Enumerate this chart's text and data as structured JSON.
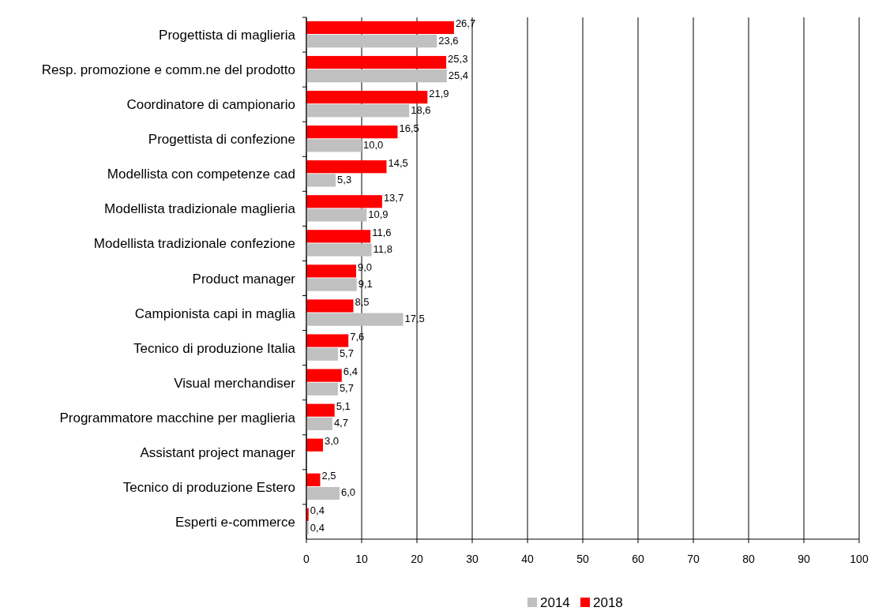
{
  "chart_data": {
    "type": "bar",
    "orientation": "horizontal",
    "categories": [
      "Progettista di maglieria",
      "Resp. promozione e comm.ne del prodotto",
      "Coordinatore di campionario",
      "Progettista di confezione",
      "Modellista con competenze cad",
      "Modellista tradizionale maglieria",
      "Modellista tradizionale confezione",
      "Product manager",
      "Campionista capi in maglia",
      "Tecnico di produzione Italia",
      "Visual merchandiser",
      "Programmatore macchine per maglieria",
      "Assistant project manager",
      "Tecnico di produzione Estero",
      "Esperti e-commerce"
    ],
    "series": [
      {
        "name": "2014",
        "color": "#c0c0c0",
        "values": [
          23.6,
          25.4,
          18.6,
          10.0,
          5.3,
          10.9,
          11.8,
          9.1,
          17.5,
          5.7,
          5.7,
          4.7,
          null,
          6.0,
          0.4
        ],
        "value_labels": [
          "23,6",
          "25,4",
          "18,6",
          "10,0",
          "5,3",
          "10,9",
          "11,8",
          "9,1",
          "17,5",
          "5,7",
          "5,7",
          "4,7",
          null,
          "6,0",
          "0,4"
        ]
      },
      {
        "name": "2018",
        "color": "#ff0000",
        "values": [
          26.7,
          25.3,
          21.9,
          16.5,
          14.5,
          13.7,
          11.6,
          9.0,
          8.5,
          7.6,
          6.4,
          5.1,
          3.0,
          2.5,
          0.4
        ],
        "value_labels": [
          "26,7",
          "25,3",
          "21,9",
          "16,5",
          "14,5",
          "13,7",
          "11,6",
          "9,0",
          "8,5",
          "7,6",
          "6,4",
          "5,1",
          "3,0",
          "2,5",
          "0,4"
        ]
      }
    ],
    "xlim": [
      0,
      100
    ],
    "xticks": [
      0,
      10,
      20,
      30,
      40,
      50,
      60,
      70,
      80,
      90,
      100
    ],
    "grid": "x",
    "legend": "bottom"
  }
}
